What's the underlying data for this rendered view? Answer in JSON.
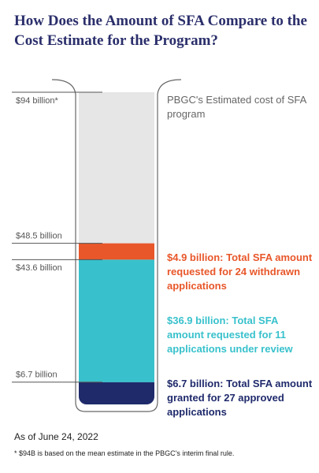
{
  "chart_data": {
    "type": "stacked-tube",
    "title": "How Does the Amount of SFA Compare to the Cost Estimate for the Program?",
    "ylim": [
      0,
      94
    ],
    "yticks": [
      {
        "value": 94,
        "label": "$94 billion*"
      },
      {
        "value": 48.5,
        "label": "$48.5 billion"
      },
      {
        "value": 43.6,
        "label": "$43.6 billion"
      },
      {
        "value": 6.7,
        "label": "$6.7 billion"
      }
    ],
    "estimate": {
      "value": 94,
      "color": "#e6e6e6",
      "label": "PBGC's Estimated cost of SFA program"
    },
    "series": [
      {
        "name": "$6.7 billion: Total SFA amount granted for 27 approved applications",
        "color": "#1f2a6b",
        "values": [
          6.7
        ]
      },
      {
        "name": "$36.9 billion: Total SFA amount requested for 11 applications under review",
        "color": "#38c1cc",
        "values": [
          36.9
        ]
      },
      {
        "name": "$4.9 billion: Total SFA amount requested for 24 withdrawn applications",
        "color": "#e8572a",
        "values": [
          4.9
        ]
      }
    ],
    "date_note": "As of June 24, 2022",
    "footnote": "* $94B is based on the mean estimate in the PBGC's interim final rule."
  }
}
